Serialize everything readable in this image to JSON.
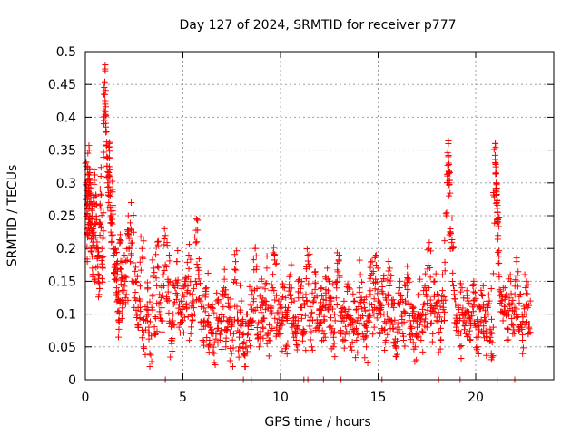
{
  "chart_data": {
    "type": "scatter",
    "title": "Day 127 of 2024, SRMTID for receiver p777",
    "xlabel": "GPS time / hours",
    "ylabel": "SRMTID / TECUs",
    "xlim": [
      0,
      24
    ],
    "ylim": [
      0,
      0.5
    ],
    "xticks": [
      0,
      5,
      10,
      15,
      20
    ],
    "yticks": [
      0,
      0.05,
      0.1,
      0.15,
      0.2,
      0.25,
      0.3,
      0.35,
      0.4,
      0.45,
      0.5
    ],
    "xtick_labels": [
      "0",
      "5",
      "10",
      "15",
      "20"
    ],
    "ytick_labels": [
      "0",
      "0.05",
      "0.1",
      "0.15",
      "0.2",
      "0.25",
      "0.3",
      "0.35",
      "0.4",
      "0.45",
      "0.5"
    ],
    "grid": true,
    "marker": "+",
    "series": [
      {
        "name": "SRMTID",
        "color": "#ff0000",
        "points": [
          [
            0.0,
            0.33
          ],
          [
            0.05,
            0.3
          ],
          [
            0.08,
            0.26
          ],
          [
            0.1,
            0.18
          ],
          [
            0.12,
            0.32
          ],
          [
            0.15,
            0.28
          ],
          [
            0.18,
            0.22
          ],
          [
            0.2,
            0.35
          ],
          [
            0.22,
            0.24
          ],
          [
            0.25,
            0.3
          ],
          [
            0.3,
            0.2
          ],
          [
            0.33,
            0.26
          ],
          [
            0.36,
            0.17
          ],
          [
            0.4,
            0.23
          ],
          [
            0.45,
            0.32
          ],
          [
            0.5,
            0.15
          ],
          [
            0.55,
            0.28
          ],
          [
            0.6,
            0.21
          ],
          [
            0.65,
            0.19
          ],
          [
            0.7,
            0.13
          ],
          [
            0.75,
            0.24
          ],
          [
            0.8,
            0.31
          ],
          [
            0.85,
            0.2
          ],
          [
            0.9,
            0.17
          ],
          [
            0.95,
            0.39
          ],
          [
            1.0,
            0.454
          ],
          [
            1.02,
            0.42
          ],
          [
            1.05,
            0.385
          ],
          [
            1.1,
            0.34
          ],
          [
            1.15,
            0.3
          ],
          [
            1.2,
            0.27
          ],
          [
            1.22,
            0.36
          ],
          [
            1.25,
            0.32
          ],
          [
            1.3,
            0.25
          ],
          [
            1.35,
            0.22
          ],
          [
            1.4,
            0.29
          ],
          [
            1.45,
            0.19
          ],
          [
            1.5,
            0.16
          ],
          [
            1.55,
            0.2
          ],
          [
            1.6,
            0.14
          ],
          [
            1.65,
            0.18
          ],
          [
            1.7,
            0.09
          ],
          [
            1.75,
            0.12
          ],
          [
            1.8,
            0.21
          ],
          [
            1.85,
            0.16
          ],
          [
            1.9,
            0.1
          ],
          [
            2.0,
            0.19
          ],
          [
            2.1,
            0.13
          ],
          [
            2.2,
            0.25
          ],
          [
            2.3,
            0.18
          ],
          [
            2.35,
            0.27
          ],
          [
            2.5,
            0.11
          ],
          [
            2.6,
            0.15
          ],
          [
            2.7,
            0.08
          ],
          [
            2.8,
            0.12
          ],
          [
            2.9,
            0.2
          ],
          [
            3.0,
            0.05
          ],
          [
            3.1,
            0.09
          ],
          [
            3.2,
            0.14
          ],
          [
            3.3,
            0.04
          ],
          [
            3.4,
            0.11
          ],
          [
            3.5,
            0.17
          ],
          [
            3.6,
            0.07
          ],
          [
            3.7,
            0.21
          ],
          [
            3.8,
            0.13
          ],
          [
            3.9,
            0.09
          ],
          [
            4.0,
            0.16
          ],
          [
            4.1,
            0.22
          ],
          [
            4.2,
            0.12
          ],
          [
            4.3,
            0.19
          ],
          [
            4.4,
            0.06
          ],
          [
            4.5,
            0.1
          ],
          [
            4.6,
            0.14
          ],
          [
            4.7,
            0.18
          ],
          [
            4.8,
            0.08
          ],
          [
            4.9,
            0.12
          ],
          [
            5.0,
            0.09
          ],
          [
            5.1,
            0.15
          ],
          [
            5.2,
            0.11
          ],
          [
            5.3,
            0.19
          ],
          [
            5.4,
            0.07
          ],
          [
            5.5,
            0.13
          ],
          [
            5.6,
            0.1
          ],
          [
            5.7,
            0.245
          ],
          [
            5.8,
            0.16
          ],
          [
            5.9,
            0.12
          ],
          [
            6.0,
            0.06
          ],
          [
            6.1,
            0.09
          ],
          [
            6.2,
            0.14
          ],
          [
            6.3,
            0.05
          ],
          [
            6.4,
            0.08
          ],
          [
            6.5,
            0.11
          ],
          [
            6.6,
            0.04
          ],
          [
            6.7,
            0.07
          ],
          [
            6.8,
            0.12
          ],
          [
            6.9,
            0.06
          ],
          [
            7.0,
            0.09
          ],
          [
            7.1,
            0.14
          ],
          [
            7.2,
            0.05
          ],
          [
            7.3,
            0.08
          ],
          [
            7.4,
            0.11
          ],
          [
            7.5,
            0.04
          ],
          [
            7.6,
            0.07
          ],
          [
            7.7,
            0.18
          ],
          [
            7.8,
            0.09
          ],
          [
            7.9,
            0.05
          ],
          [
            8.0,
            0.12
          ],
          [
            8.1,
            0.07
          ],
          [
            8.2,
            0.02
          ],
          [
            8.3,
            0.1
          ],
          [
            8.4,
            0.06
          ],
          [
            8.5,
            0.13
          ],
          [
            8.6,
            0.09
          ],
          [
            8.7,
            0.2
          ],
          [
            8.8,
            0.11
          ],
          [
            8.9,
            0.05
          ],
          [
            9.0,
            0.15
          ],
          [
            9.1,
            0.08
          ],
          [
            9.2,
            0.12
          ],
          [
            9.3,
            0.17
          ],
          [
            9.4,
            0.06
          ],
          [
            9.5,
            0.1
          ],
          [
            9.6,
            0.14
          ],
          [
            9.7,
            0.19
          ],
          [
            9.8,
            0.08
          ],
          [
            9.9,
            0.12
          ],
          [
            10.0,
            0.07
          ],
          [
            10.1,
            0.1
          ],
          [
            10.2,
            0.14
          ],
          [
            10.3,
            0.05
          ],
          [
            10.4,
            0.11
          ],
          [
            10.5,
            0.16
          ],
          [
            10.6,
            0.08
          ],
          [
            10.7,
            0.12
          ],
          [
            10.8,
            0.06
          ],
          [
            10.9,
            0.09
          ],
          [
            11.0,
            0.15
          ],
          [
            11.1,
            0.11
          ],
          [
            11.2,
            0.07
          ],
          [
            11.3,
            0.13
          ],
          [
            11.4,
            0.19
          ],
          [
            11.5,
            0.09
          ],
          [
            11.6,
            0.05
          ],
          [
            11.7,
            0.12
          ],
          [
            11.8,
            0.16
          ],
          [
            11.9,
            0.08
          ],
          [
            12.0,
            0.1
          ],
          [
            12.1,
            0.14
          ],
          [
            12.2,
            0.06
          ],
          [
            12.3,
            0.11
          ],
          [
            12.4,
            0.17
          ],
          [
            12.5,
            0.08
          ],
          [
            12.6,
            0.12
          ],
          [
            12.7,
            0.05
          ],
          [
            12.8,
            0.09
          ],
          [
            12.9,
            0.15
          ],
          [
            13.0,
            0.19
          ],
          [
            13.1,
            0.07
          ],
          [
            13.2,
            0.11
          ],
          [
            13.3,
            0.06
          ],
          [
            13.4,
            0.1
          ],
          [
            13.5,
            0.14
          ],
          [
            13.6,
            0.05
          ],
          [
            13.7,
            0.09
          ],
          [
            13.8,
            0.12
          ],
          [
            13.9,
            0.06
          ],
          [
            14.0,
            0.1
          ],
          [
            14.1,
            0.16
          ],
          [
            14.2,
            0.07
          ],
          [
            14.3,
            0.11
          ],
          [
            14.4,
            0.05
          ],
          [
            14.5,
            0.09
          ],
          [
            14.6,
            0.13
          ],
          [
            14.7,
            0.18
          ],
          [
            14.8,
            0.08
          ],
          [
            14.9,
            0.19
          ],
          [
            15.0,
            0.12
          ],
          [
            15.1,
            0.07
          ],
          [
            15.2,
            0.15
          ],
          [
            15.3,
            0.1
          ],
          [
            15.4,
            0.06
          ],
          [
            15.5,
            0.13
          ],
          [
            15.6,
            0.17
          ],
          [
            15.7,
            0.09
          ],
          [
            15.8,
            0.11
          ],
          [
            15.9,
            0.05
          ],
          [
            16.0,
            0.08
          ],
          [
            16.1,
            0.14
          ],
          [
            16.2,
            0.1
          ],
          [
            16.3,
            0.06
          ],
          [
            16.4,
            0.12
          ],
          [
            16.5,
            0.16
          ],
          [
            16.6,
            0.09
          ],
          [
            16.7,
            0.07
          ],
          [
            16.8,
            0.11
          ],
          [
            16.9,
            0.05
          ],
          [
            17.0,
            0.08
          ],
          [
            17.1,
            0.13
          ],
          [
            17.2,
            0.06
          ],
          [
            17.3,
            0.1
          ],
          [
            17.4,
            0.14
          ],
          [
            17.5,
            0.08
          ],
          [
            17.6,
            0.2
          ],
          [
            17.7,
            0.11
          ],
          [
            17.8,
            0.07
          ],
          [
            17.9,
            0.15
          ],
          [
            18.0,
            0.09
          ],
          [
            18.1,
            0.12
          ],
          [
            18.2,
            0.06
          ],
          [
            18.3,
            0.16
          ],
          [
            18.4,
            0.1
          ],
          [
            18.5,
            0.25
          ],
          [
            18.6,
            0.364
          ],
          [
            18.62,
            0.315
          ],
          [
            18.65,
            0.3
          ],
          [
            18.7,
            0.23
          ],
          [
            18.8,
            0.2
          ],
          [
            18.9,
            0.13
          ],
          [
            19.0,
            0.08
          ],
          [
            19.1,
            0.11
          ],
          [
            19.2,
            0.05
          ],
          [
            19.3,
            0.14
          ],
          [
            19.4,
            0.09
          ],
          [
            19.5,
            0.07
          ],
          [
            19.6,
            0.12
          ],
          [
            19.7,
            0.06
          ],
          [
            19.8,
            0.1
          ],
          [
            19.9,
            0.15
          ],
          [
            20.0,
            0.08
          ],
          [
            20.1,
            0.05
          ],
          [
            20.2,
            0.11
          ],
          [
            20.3,
            0.13
          ],
          [
            20.4,
            0.07
          ],
          [
            20.5,
            0.1
          ],
          [
            20.6,
            0.06
          ],
          [
            20.7,
            0.12
          ],
          [
            20.8,
            0.04
          ],
          [
            20.9,
            0.08
          ],
          [
            21.0,
            0.342
          ],
          [
            21.02,
            0.33
          ],
          [
            21.05,
            0.3
          ],
          [
            21.08,
            0.27
          ],
          [
            21.1,
            0.255
          ],
          [
            21.12,
            0.24
          ],
          [
            21.15,
            0.22
          ],
          [
            21.2,
            0.16
          ],
          [
            21.3,
            0.12
          ],
          [
            21.4,
            0.09
          ],
          [
            21.5,
            0.14
          ],
          [
            21.6,
            0.06
          ],
          [
            21.7,
            0.1
          ],
          [
            21.8,
            0.15
          ],
          [
            21.9,
            0.07
          ],
          [
            22.0,
            0.11
          ],
          [
            22.1,
            0.18
          ],
          [
            22.2,
            0.08
          ],
          [
            22.3,
            0.13
          ],
          [
            22.4,
            0.06
          ],
          [
            22.5,
            0.1
          ],
          [
            22.6,
            0.15
          ],
          [
            22.7,
            0.07
          ],
          [
            22.8,
            0.12
          ]
        ]
      }
    ],
    "zero_points_x": [
      4.1,
      8.1,
      8.5,
      11.2,
      11.4,
      12.2,
      13.1,
      15.2,
      18.1,
      19.2,
      21.1,
      22.0
    ]
  }
}
